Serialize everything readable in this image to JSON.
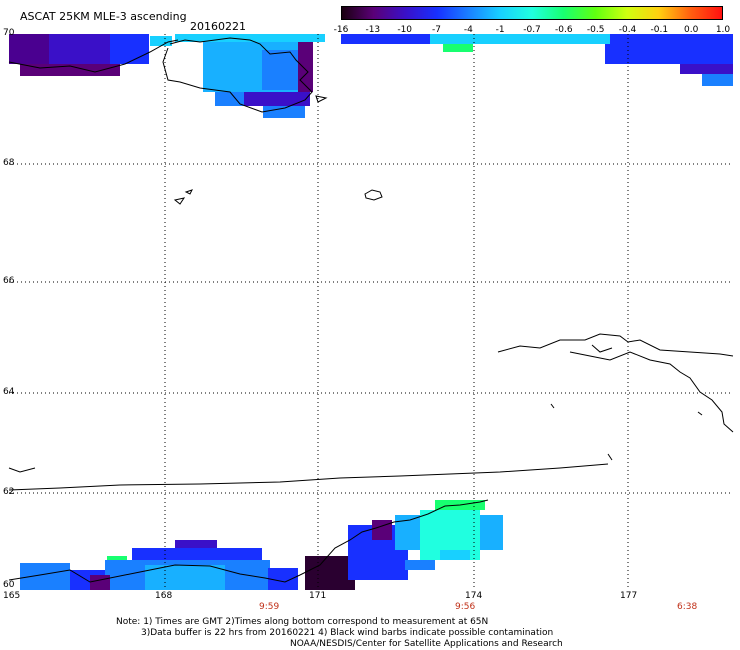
{
  "header": {
    "title": "ASCAT 25KM MLE-3 ascending",
    "date": "20160221"
  },
  "colorbar": {
    "labels": [
      "-16",
      "-13",
      "-10",
      "-7",
      "-4",
      "-1",
      "-0.7",
      "-0.6",
      "-0.5",
      "-0.4",
      "-0.1",
      "0.0",
      "1.0"
    ],
    "colors": [
      "#1a0010",
      "#5a0078",
      "#3a10c8",
      "#1830ff",
      "#1a80ff",
      "#18d0ff",
      "#20ffe0",
      "#18ff70",
      "#60ff10",
      "#d0ff10",
      "#ffd010",
      "#ff6010",
      "#ff1010"
    ]
  },
  "map": {
    "lat_labels": [
      "70",
      "68",
      "66",
      "64",
      "62",
      "60"
    ],
    "lon_labels": [
      "165",
      "168",
      "171",
      "174",
      "177"
    ],
    "pass_times": [
      "9:59",
      "9:56",
      "6:38"
    ]
  },
  "footer": {
    "note1": "Note: 1) Times are GMT 2)Times along bottom correspond to measurement at 65N",
    "note2": "3)Data buffer is 22 hrs from 20160221 4) Black wind barbs indicate possible contamination",
    "credit": "NOAA/NESDIS/Center for Satellite Applications and Research"
  }
}
